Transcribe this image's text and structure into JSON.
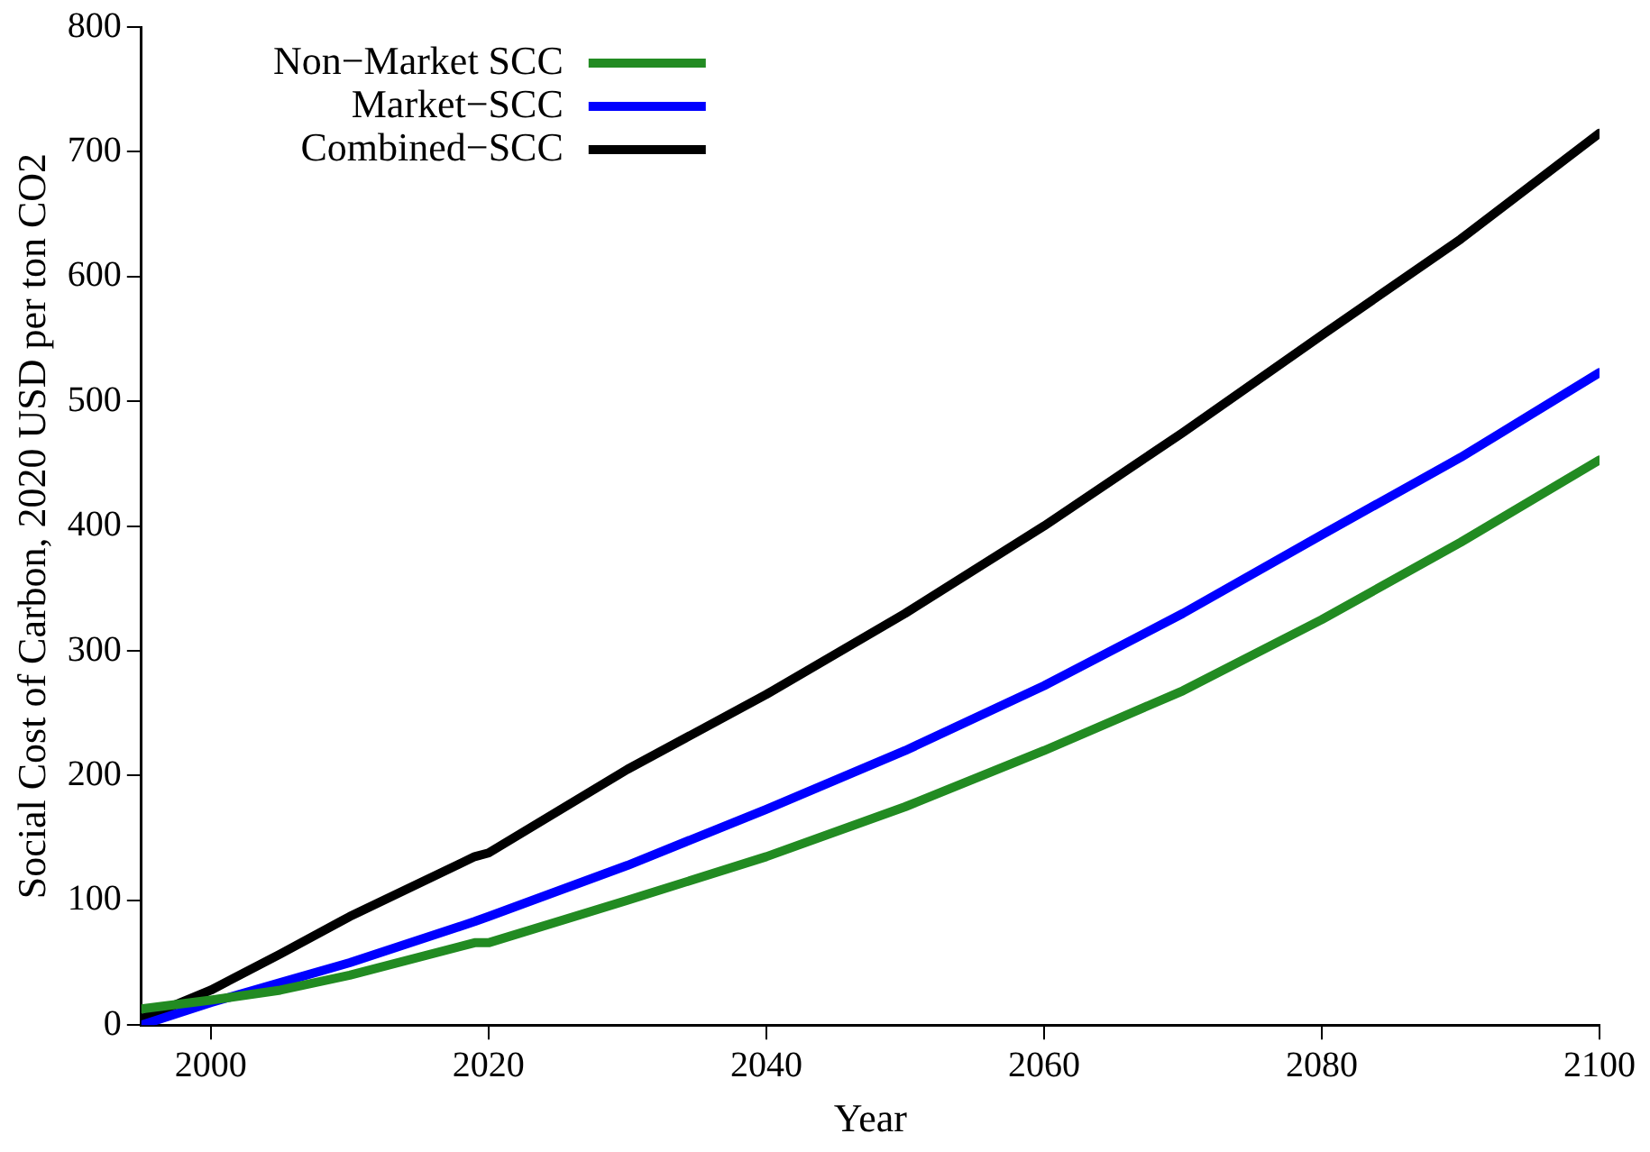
{
  "chart_data": {
    "type": "line",
    "xlabel": "Year",
    "ylabel": "Social Cost of Carbon, 2020 USD per ton CO2",
    "x": [
      1995,
      2000,
      2005,
      2010,
      2019,
      2020,
      2030,
      2040,
      2050,
      2060,
      2070,
      2080,
      2090,
      2100
    ],
    "series": [
      {
        "name": "Non−Market SCC",
        "color": "#228b22",
        "values": [
          13,
          20,
          28,
          40,
          66,
          66,
          100,
          135,
          175,
          220,
          268,
          325,
          387,
          453
        ]
      },
      {
        "name": "Market−SCC",
        "color": "#0000ff",
        "values": [
          0,
          18,
          34,
          50,
          83,
          87,
          128,
          173,
          220,
          272,
          330,
          393,
          455,
          523
        ]
      },
      {
        "name": "Combined−SCC",
        "color": "#000000",
        "values": [
          5,
          28,
          57,
          87,
          135,
          138,
          205,
          265,
          330,
          400,
          475,
          553,
          630,
          715
        ]
      }
    ],
    "xlim": [
      1995,
      2100
    ],
    "xticks": [
      2000,
      2020,
      2040,
      2060,
      2080,
      2100
    ],
    "ylim": [
      0,
      800
    ],
    "yticks": [
      0,
      100,
      200,
      300,
      400,
      500,
      600,
      700,
      800
    ],
    "legend": "top left",
    "grid": false,
    "marker": "none",
    "line_style": "solid"
  }
}
